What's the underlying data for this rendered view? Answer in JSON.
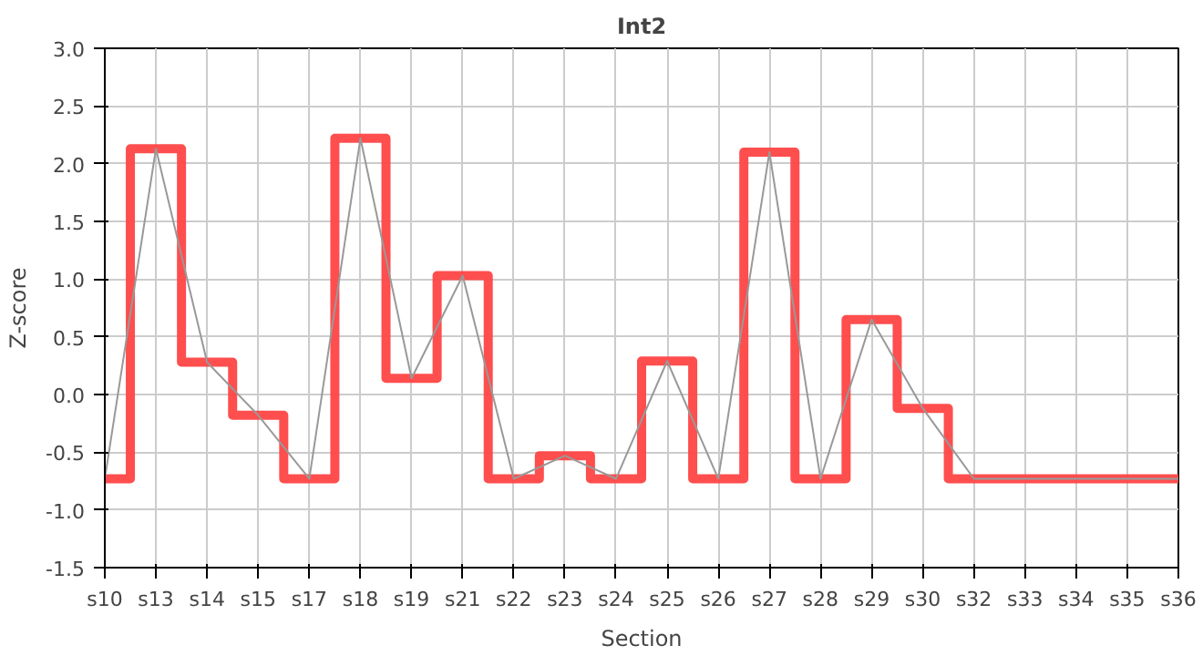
{
  "chart_data": {
    "type": "step",
    "title": "Int2",
    "xlabel": "Section",
    "ylabel": "Z-score",
    "categories": [
      "s10",
      "s13",
      "s14",
      "s15",
      "s17",
      "s18",
      "s19",
      "s21",
      "s22",
      "s23",
      "s24",
      "s25",
      "s26",
      "s27",
      "s28",
      "s29",
      "s30",
      "s32",
      "s33",
      "s34",
      "s35",
      "s36"
    ],
    "series": [
      {
        "color": "#ff4444",
        "values": [
          -0.73,
          2.13,
          0.28,
          -0.18,
          -0.73,
          2.22,
          0.14,
          1.03,
          -0.73,
          -0.53,
          -0.73,
          0.29,
          -0.73,
          2.1,
          -0.73,
          0.65,
          -0.12,
          -0.73,
          -0.73,
          -0.73,
          -0.73,
          -0.73
        ]
      },
      {
        "type": "line",
        "color": "#999999",
        "values": [
          -0.73,
          2.13,
          0.28,
          -0.18,
          -0.73,
          2.22,
          0.14,
          1.03,
          -0.73,
          -0.53,
          -0.73,
          0.29,
          -0.73,
          2.1,
          -0.73,
          0.65,
          -0.12,
          -0.73,
          -0.73,
          -0.73,
          -0.73,
          -0.73
        ]
      }
    ],
    "ylim": [
      -1.5,
      3.0
    ],
    "yticks": [
      -1.5,
      {
        "value": -1.0,
        "label": "-1.0"
      },
      -0.5,
      {
        "value": 0,
        "label": "0.0"
      },
      0.5,
      {
        "value": 1.0,
        "label": "1.0"
      },
      1.5,
      {
        "value": 2.0,
        "label": "2.0"
      },
      2.5,
      {
        "value": 3.0,
        "label": "3.0"
      }
    ],
    "grid": true
  }
}
